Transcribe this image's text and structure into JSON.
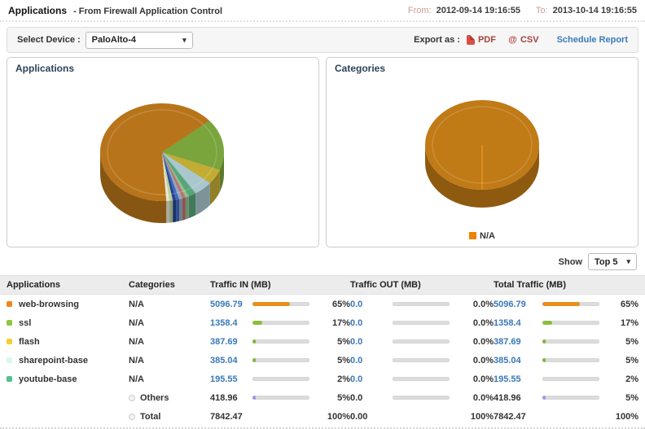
{
  "header": {
    "title": "Applications",
    "subtitle": "- From Firewall Application Control",
    "from_label": "From:",
    "from_value": "2012-09-14 19:16:55",
    "to_label": "To:",
    "to_value": "2013-10-14 19:16:55"
  },
  "toolbar": {
    "select_device_label": "Select Device :",
    "device": "PaloAlto-4",
    "export_label": "Export as :",
    "pdf_label": "PDF",
    "csv_label": "CSV",
    "csv_icon_glyph": "@",
    "schedule_label": "Schedule Report"
  },
  "show": {
    "label": "Show",
    "value": "Top 5"
  },
  "chart_data": [
    {
      "type": "pie",
      "title": "Applications",
      "legend_visible": false,
      "slices": [
        {
          "label": "web-browsing",
          "value": 65,
          "color": "#b8741a"
        },
        {
          "label": "ssl",
          "value": 17,
          "color": "#7aa53c"
        },
        {
          "label": "flash",
          "value": 5,
          "color": "#c2ac33"
        },
        {
          "label": "sharepoint-base",
          "value": 5,
          "color": "#a9c7cd"
        },
        {
          "label": "youtube-base",
          "value": 2,
          "color": "#57a578"
        },
        {
          "label": "others",
          "value": 0.9,
          "color": "#8fbf8f"
        },
        {
          "label": "others",
          "value": 0.9,
          "color": "#c0706e"
        },
        {
          "label": "others",
          "value": 0.85,
          "color": "#93a9bd"
        },
        {
          "label": "others",
          "value": 0.85,
          "color": "#3f68c0"
        },
        {
          "label": "others",
          "value": 0.85,
          "color": "#27418f"
        },
        {
          "label": "others",
          "value": 0.85,
          "color": "#b9d39a"
        },
        {
          "label": "others",
          "value": 0.8,
          "color": "#e9e7d2"
        }
      ]
    },
    {
      "type": "pie",
      "title": "Categories",
      "legend": [
        "N/A"
      ],
      "legend_color": "#ef8200",
      "slices": [
        {
          "label": "N/A",
          "value": 100,
          "color": "#c07a16"
        }
      ]
    }
  ],
  "table": {
    "columns": [
      "Applications",
      "Categories",
      "Traffic IN (MB)",
      "Traffic OUT (MB)",
      "Total Traffic (MB)"
    ],
    "rows": [
      {
        "type": "app",
        "bullet": "#f1861b",
        "bar_color": "#e88f1a",
        "app": "web-browsing",
        "category": "N/A",
        "link": true,
        "in_val": "5096.79",
        "in_pct": 65,
        "in_pct_label": "65%",
        "out_val": "0.0",
        "out_pct": 0,
        "out_pct_label": "0.0%",
        "tot_val": "5096.79",
        "tot_pct": 65,
        "tot_pct_label": "65%"
      },
      {
        "type": "app",
        "bullet": "#8dc63f",
        "bar_color": "#8bbf3f",
        "app": "ssl",
        "category": "N/A",
        "link": true,
        "in_val": "1358.4",
        "in_pct": 17,
        "in_pct_label": "17%",
        "out_val": "0.0",
        "out_pct": 0,
        "out_pct_label": "0.0%",
        "tot_val": "1358.4",
        "tot_pct": 17,
        "tot_pct_label": "17%"
      },
      {
        "type": "app",
        "bullet": "#f2d12e",
        "bar_color": "#7fb53a",
        "app": "flash",
        "category": "N/A",
        "link": true,
        "in_val": "387.69",
        "in_pct": 5,
        "in_pct_label": "5%",
        "out_val": "0.0",
        "out_pct": 0,
        "out_pct_label": "0.0%",
        "tot_val": "387.69",
        "tot_pct": 5,
        "tot_pct_label": "5%"
      },
      {
        "type": "app",
        "bullet": "#d9f6ef",
        "bar_color": "#7fb53a",
        "app": "sharepoint-base",
        "category": "N/A",
        "link": true,
        "in_val": "385.04",
        "in_pct": 5,
        "in_pct_label": "5%",
        "out_val": "0.0",
        "out_pct": 0,
        "out_pct_label": "0.0%",
        "tot_val": "385.04",
        "tot_pct": 5,
        "tot_pct_label": "5%"
      },
      {
        "type": "app",
        "bullet": "#54c08a",
        "bar_color": "#cfe0ba",
        "app": "youtube-base",
        "category": "N/A",
        "link": true,
        "in_val": "195.55",
        "in_pct": 2,
        "in_pct_label": "2%",
        "out_val": "0.0",
        "out_pct": 0,
        "out_pct_label": "0.0%",
        "tot_val": "195.55",
        "tot_pct": 2,
        "tot_pct_label": "2%"
      },
      {
        "type": "others",
        "bar_color": "#9a99ec",
        "app": "",
        "category": "Others",
        "link": false,
        "in_val": "418.96",
        "in_pct": 5,
        "in_pct_label": "5%",
        "out_val": "0.0",
        "out_pct": 0,
        "out_pct_label": "0.0%",
        "tot_val": "418.96",
        "tot_pct": 5,
        "tot_pct_label": "5%"
      },
      {
        "type": "total",
        "bar_color": "",
        "app": "",
        "category": "Total",
        "link": false,
        "in_val": "7842.47",
        "in_pct": null,
        "in_pct_label": "100%",
        "out_val": "0.00",
        "out_pct": null,
        "out_pct_label": "100%",
        "tot_val": "7842.47",
        "tot_pct": null,
        "tot_pct_label": "100%"
      }
    ]
  }
}
